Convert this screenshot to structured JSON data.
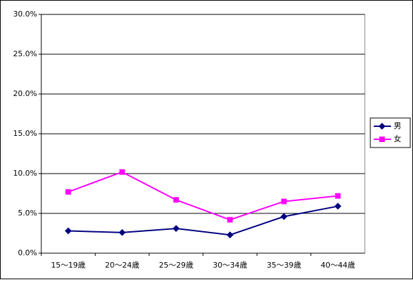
{
  "chart_data": {
    "type": "line",
    "categories": [
      "15〜19歳",
      "20〜24歳",
      "25〜29歳",
      "30〜34歳",
      "35〜39歳",
      "40〜44歳"
    ],
    "series": [
      {
        "name": "男",
        "color": "#000080",
        "marker": "diamond",
        "values": [
          2.8,
          2.6,
          3.1,
          2.3,
          4.6,
          5.9
        ]
      },
      {
        "name": "女",
        "color": "#ff00ff",
        "marker": "square",
        "values": [
          7.7,
          10.2,
          6.7,
          4.2,
          6.5,
          7.2
        ]
      }
    ],
    "ylim": [
      0,
      30
    ],
    "yticks": [
      {
        "value": 0,
        "label": "0.0%"
      },
      {
        "value": 5,
        "label": "5.0%"
      },
      {
        "value": 10,
        "label": "10.0%"
      },
      {
        "value": 15,
        "label": "15.0%"
      },
      {
        "value": 20,
        "label": "20.0%"
      },
      {
        "value": 25,
        "label": "25.0%"
      },
      {
        "value": 30,
        "label": "30.0%"
      }
    ],
    "grid": true,
    "legend": "right"
  }
}
